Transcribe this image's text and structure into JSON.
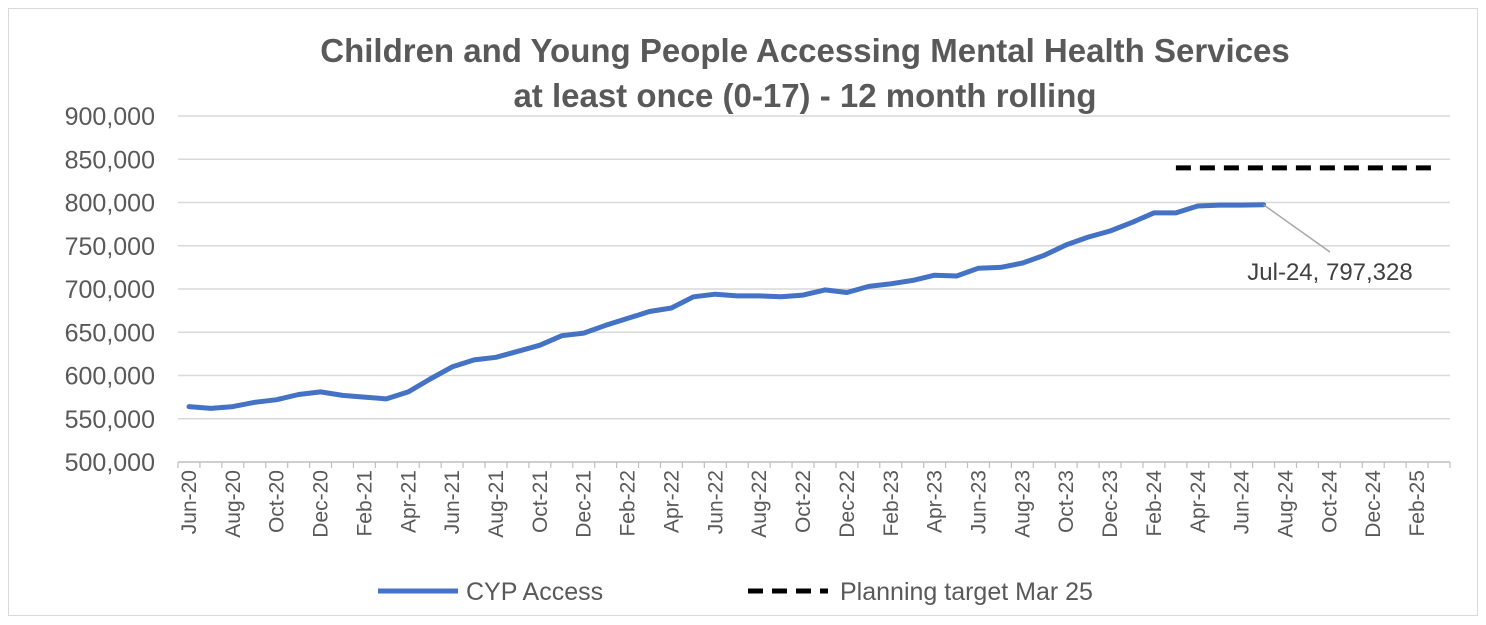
{
  "chart_data": {
    "type": "line",
    "title_line1": "Children and Young People Accessing Mental Health Services",
    "title_line2": "at least once (0-17) - 12 month rolling",
    "xlabel": "",
    "ylabel": "",
    "ylim": [
      500000,
      900000
    ],
    "y_ticks": [
      "900,000",
      "850,000",
      "800,000",
      "750,000",
      "700,000",
      "650,000",
      "600,000",
      "550,000",
      "500,000"
    ],
    "x_categories": [
      "Jun-20",
      "Jul-20",
      "Aug-20",
      "Sep-20",
      "Oct-20",
      "Nov-20",
      "Dec-20",
      "Jan-21",
      "Feb-21",
      "Mar-21",
      "Apr-21",
      "May-21",
      "Jun-21",
      "Jul-21",
      "Aug-21",
      "Sep-21",
      "Oct-21",
      "Nov-21",
      "Dec-21",
      "Jan-22",
      "Feb-22",
      "Mar-22",
      "Apr-22",
      "May-22",
      "Jun-22",
      "Jul-22",
      "Aug-22",
      "Sep-22",
      "Oct-22",
      "Nov-22",
      "Dec-22",
      "Jan-23",
      "Feb-23",
      "Mar-23",
      "Apr-23",
      "May-23",
      "Jun-23",
      "Jul-23",
      "Aug-23",
      "Sep-23",
      "Oct-23",
      "Nov-23",
      "Dec-23",
      "Jan-24",
      "Feb-24",
      "Mar-24",
      "Apr-24",
      "May-24",
      "Jun-24",
      "Jul-24",
      "Aug-24",
      "Sep-24",
      "Oct-24",
      "Nov-24",
      "Dec-24",
      "Jan-25",
      "Feb-25",
      "Mar-25"
    ],
    "x_tick_labels": [
      "Jun-20",
      "Aug-20",
      "Oct-20",
      "Dec-20",
      "Feb-21",
      "Apr-21",
      "Jun-21",
      "Aug-21",
      "Oct-21",
      "Dec-21",
      "Feb-22",
      "Apr-22",
      "Jun-22",
      "Aug-22",
      "Oct-22",
      "Dec-22",
      "Feb-23",
      "Apr-23",
      "Jun-23",
      "Aug-23",
      "Oct-23",
      "Dec-23",
      "Feb-24",
      "Apr-24",
      "Jun-24",
      "Aug-24",
      "Oct-24",
      "Dec-24",
      "Feb-25"
    ],
    "series": [
      {
        "name": "CYP Access",
        "color": "#4472c4",
        "style": "solid",
        "start_index": 0,
        "values": [
          564000,
          562000,
          564000,
          569000,
          572000,
          578000,
          581000,
          577000,
          575000,
          573000,
          581000,
          596000,
          610000,
          618000,
          621000,
          628000,
          635000,
          646000,
          649000,
          658000,
          666000,
          674000,
          678000,
          691000,
          694000,
          692000,
          692000,
          691000,
          693000,
          699000,
          696000,
          703000,
          706000,
          710000,
          716000,
          715000,
          724000,
          725000,
          730000,
          739000,
          751000,
          760000,
          767000,
          777000,
          788000,
          788000,
          796000,
          797000,
          797000,
          797328
        ]
      },
      {
        "name": "Planning target Mar 25",
        "color": "#000000",
        "style": "dashed",
        "start_index": 45,
        "values": [
          840000,
          840000,
          840000,
          840000,
          840000,
          840000,
          840000,
          840000,
          840000,
          840000,
          840000,
          840000,
          840000
        ]
      }
    ],
    "annotation": {
      "text": "Jul-24, 797,328",
      "category": "Jul-24",
      "value": 797328
    },
    "grid": "horizontal",
    "legend": "bottom"
  }
}
